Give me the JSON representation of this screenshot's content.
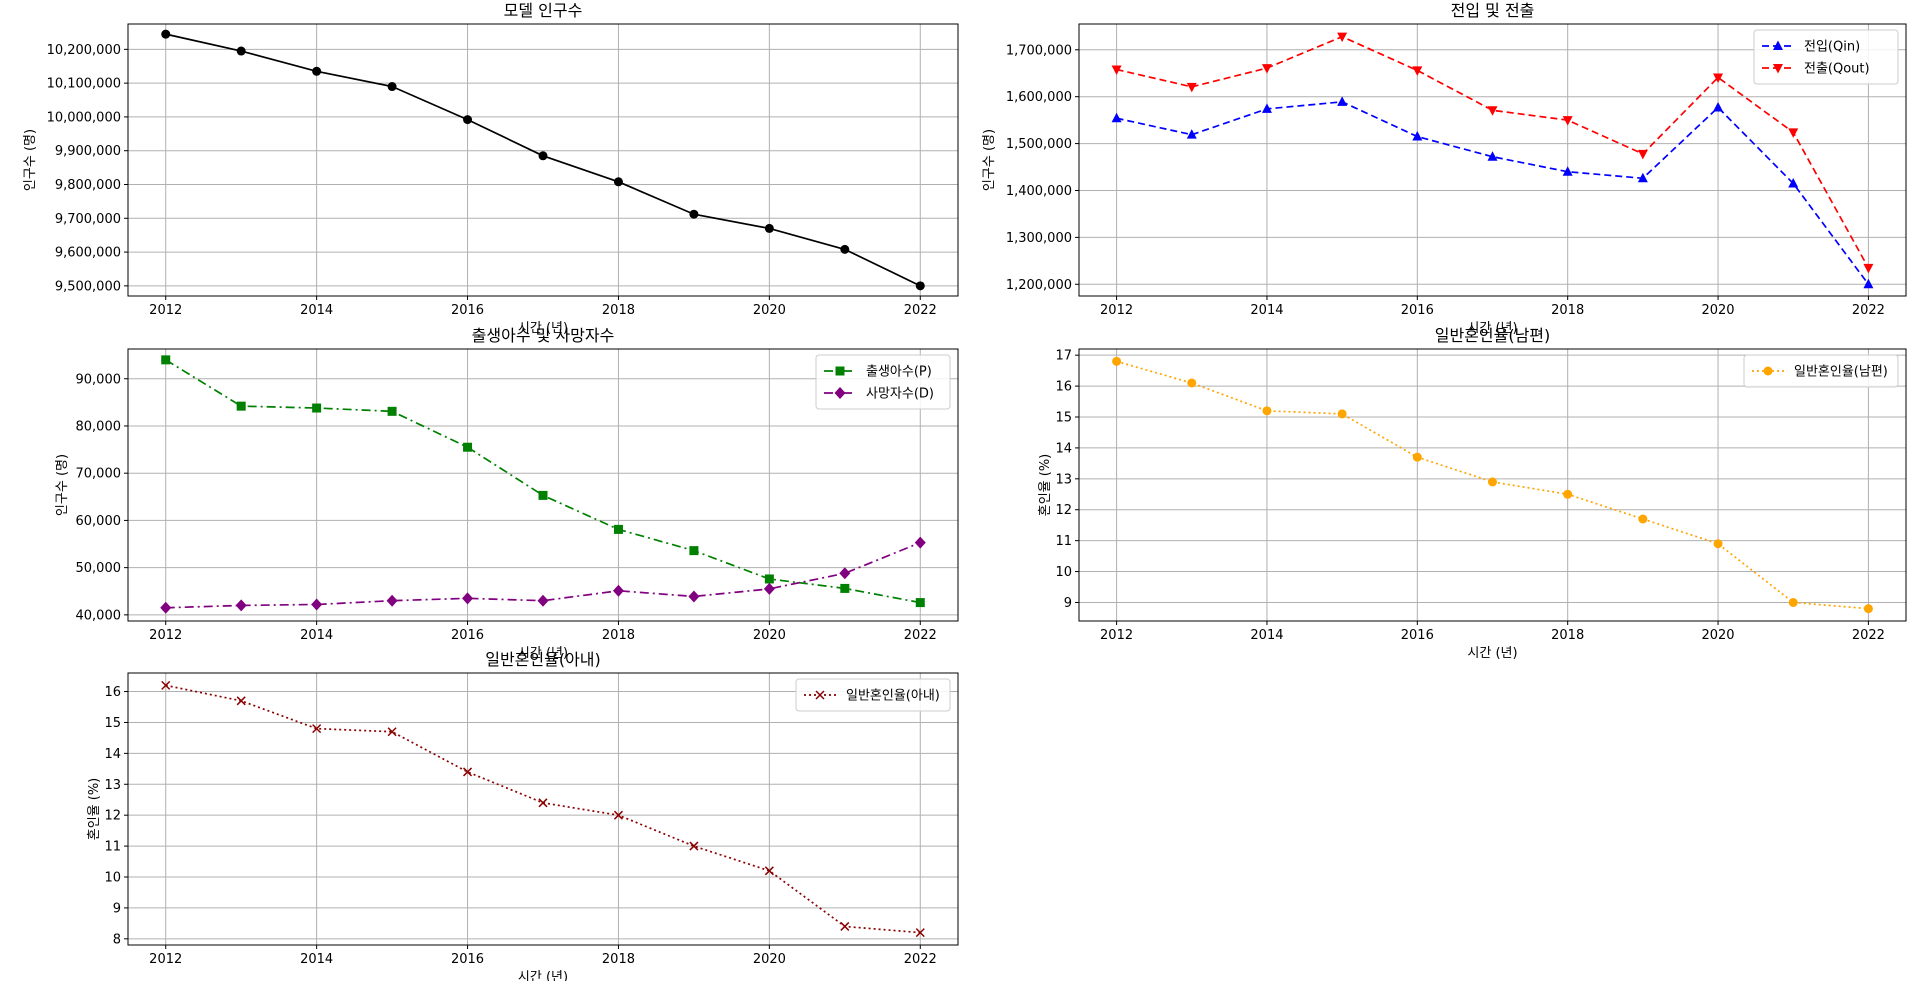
{
  "chart_data": [
    {
      "type": "line",
      "title": "모델 인구수",
      "xlabel": "시간 (년)",
      "ylabel": "인구수 (명)",
      "x": [
        2012,
        2013,
        2014,
        2015,
        2016,
        2017,
        2018,
        2019,
        2020,
        2021,
        2022
      ],
      "xlim": [
        2011.5,
        2022.5
      ],
      "ylim": [
        9470000,
        10275000
      ],
      "xticks": [
        2012,
        2014,
        2016,
        2018,
        2020,
        2022
      ],
      "yticks": [
        9500000,
        9600000,
        9700000,
        9800000,
        9900000,
        10000000,
        10100000,
        10200000
      ],
      "grid": true,
      "legend": null,
      "series": [
        {
          "name": "",
          "color": "#000000",
          "linestyle": "solid",
          "marker": "circle",
          "values": [
            10245000,
            10195000,
            10135000,
            10090000,
            9992000,
            9885000,
            9808000,
            9712000,
            9670000,
            9608000,
            9500000
          ]
        }
      ]
    },
    {
      "type": "line",
      "title": "전입 및 전출",
      "xlabel": "시간 (년)",
      "ylabel": "인구수 (명)",
      "x": [
        2012,
        2013,
        2014,
        2015,
        2016,
        2017,
        2018,
        2019,
        2020,
        2021,
        2022
      ],
      "xlim": [
        2011.5,
        2022.5
      ],
      "ylim": [
        1175000,
        1755000
      ],
      "xticks": [
        2012,
        2014,
        2016,
        2018,
        2020,
        2022
      ],
      "yticks": [
        1200000,
        1300000,
        1400000,
        1500000,
        1600000,
        1700000
      ],
      "grid": true,
      "legend": "top-right",
      "series": [
        {
          "name": "전입(Qin)",
          "color": "#0000ff",
          "linestyle": "dashed",
          "marker": "triangle-up",
          "values": [
            1554000,
            1519000,
            1574000,
            1589000,
            1515000,
            1472000,
            1440000,
            1426000,
            1577000,
            1415000,
            1200000
          ]
        },
        {
          "name": "전출(Qout)",
          "color": "#ff0000",
          "linestyle": "dashed",
          "marker": "triangle-down",
          "values": [
            1658000,
            1621000,
            1661000,
            1728000,
            1656000,
            1571000,
            1550000,
            1478000,
            1641000,
            1524000,
            1235000
          ]
        }
      ]
    },
    {
      "type": "line",
      "title": "출생아수 및 사망자수",
      "xlabel": "시간 (년)",
      "ylabel": "인구수 (명)",
      "x": [
        2012,
        2013,
        2014,
        2015,
        2016,
        2017,
        2018,
        2019,
        2020,
        2021,
        2022
      ],
      "xlim": [
        2011.5,
        2022.5
      ],
      "ylim": [
        38700,
        96300
      ],
      "xticks": [
        2012,
        2014,
        2016,
        2018,
        2020,
        2022
      ],
      "yticks": [
        40000,
        50000,
        60000,
        70000,
        80000,
        90000
      ],
      "grid": true,
      "legend": "top-right",
      "series": [
        {
          "name": "출생아수(P)",
          "color": "#008000",
          "linestyle": "dashdot",
          "marker": "square",
          "values": [
            94000,
            84200,
            83800,
            83100,
            75500,
            65300,
            58100,
            53600,
            47600,
            45600,
            42600
          ]
        },
        {
          "name": "사망자수(D)",
          "color": "#800080",
          "linestyle": "dashdot",
          "marker": "diamond",
          "values": [
            41500,
            42000,
            42200,
            43000,
            43500,
            43000,
            45100,
            43900,
            45500,
            48800,
            55300
          ]
        }
      ]
    },
    {
      "type": "line",
      "title": "일반혼인율(남편)",
      "xlabel": "시간 (년)",
      "ylabel": "혼인율 (%)",
      "x": [
        2012,
        2013,
        2014,
        2015,
        2016,
        2017,
        2018,
        2019,
        2020,
        2021,
        2022
      ],
      "xlim": [
        2011.5,
        2022.5
      ],
      "ylim": [
        8.4,
        17.2
      ],
      "xticks": [
        2012,
        2014,
        2016,
        2018,
        2020,
        2022
      ],
      "yticks": [
        9,
        10,
        11,
        12,
        13,
        14,
        15,
        16,
        17
      ],
      "grid": true,
      "legend": "top-right",
      "series": [
        {
          "name": "일반혼인율(남편)",
          "color": "#ffa500",
          "linestyle": "dotted",
          "marker": "circle",
          "values": [
            16.8,
            16.1,
            15.2,
            15.1,
            13.7,
            12.9,
            12.5,
            11.7,
            10.9,
            9.0,
            8.8
          ]
        }
      ]
    },
    {
      "type": "line",
      "title": "일반혼인율(아내)",
      "xlabel": "시간 (년)",
      "ylabel": "혼인율 (%)",
      "x": [
        2012,
        2013,
        2014,
        2015,
        2016,
        2017,
        2018,
        2019,
        2020,
        2021,
        2022
      ],
      "xlim": [
        2011.5,
        2022.5
      ],
      "ylim": [
        7.8,
        16.6
      ],
      "xticks": [
        2012,
        2014,
        2016,
        2018,
        2020,
        2022
      ],
      "yticks": [
        8,
        9,
        10,
        11,
        12,
        13,
        14,
        15,
        16
      ],
      "grid": true,
      "legend": "top-right",
      "series": [
        {
          "name": "일반혼인율(아내)",
          "color": "#8b0000",
          "linestyle": "dotted",
          "marker": "x",
          "values": [
            16.2,
            15.7,
            14.8,
            14.7,
            13.4,
            12.4,
            12.0,
            11.0,
            10.2,
            8.4,
            8.2
          ]
        }
      ]
    }
  ]
}
